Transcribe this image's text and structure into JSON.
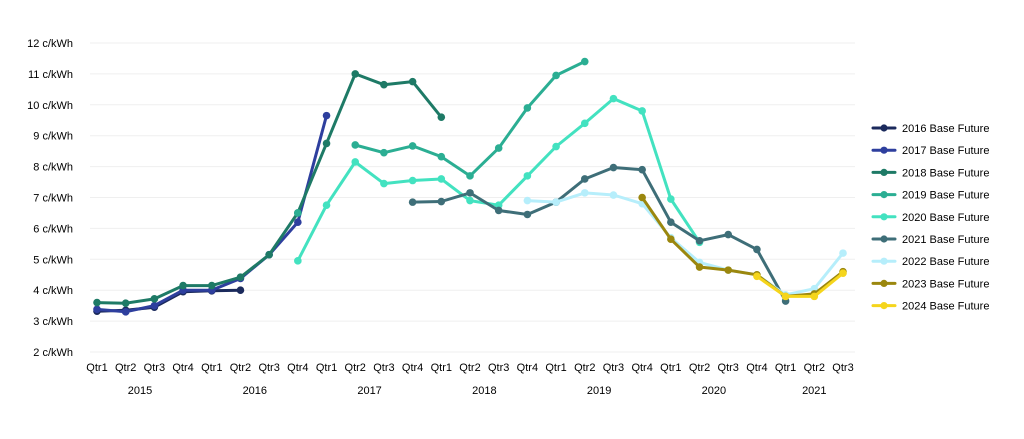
{
  "chart_data": {
    "type": "line",
    "y_unit_label": "c/kWh",
    "ylim": [
      2,
      12
    ],
    "yticks": [
      {
        "value": 12,
        "label": "12 c/kWh"
      },
      {
        "value": 11,
        "label": "11 c/kWh"
      },
      {
        "value": 10,
        "label": "10 c/kWh"
      },
      {
        "value": 9,
        "label": "9 c/kWh"
      },
      {
        "value": 8,
        "label": "8 c/kWh"
      },
      {
        "value": 7,
        "label": "7 c/kWh"
      },
      {
        "value": 6,
        "label": "6 c/kWh"
      },
      {
        "value": 5,
        "label": "5 c/kWh"
      },
      {
        "value": 4,
        "label": "4 c/kWh"
      },
      {
        "value": 3,
        "label": "3 c/kWh"
      },
      {
        "value": 2,
        "label": "2 c/kWh"
      }
    ],
    "categories": [
      "Qtr1",
      "Qtr2",
      "Qtr3",
      "Qtr4",
      "Qtr1",
      "Qtr2",
      "Qtr3",
      "Qtr4",
      "Qtr1",
      "Qtr2",
      "Qtr3",
      "Qtr4",
      "Qtr1",
      "Qtr2",
      "Qtr3",
      "Qtr4",
      "Qtr1",
      "Qtr2",
      "Qtr3",
      "Qtr4",
      "Qtr1",
      "Qtr2",
      "Qtr3",
      "Qtr4",
      "Qtr1",
      "Qtr2",
      "Qtr3"
    ],
    "year_groups": [
      {
        "label": "2015",
        "start": 0,
        "end": 3
      },
      {
        "label": "2016",
        "start": 4,
        "end": 7
      },
      {
        "label": "2017",
        "start": 8,
        "end": 11
      },
      {
        "label": "2018",
        "start": 12,
        "end": 15
      },
      {
        "label": "2019",
        "start": 16,
        "end": 19
      },
      {
        "label": "2020",
        "start": 20,
        "end": 23
      },
      {
        "label": "2021",
        "start": 24,
        "end": 26
      }
    ],
    "grid": true,
    "legend_position": "right",
    "series": [
      {
        "name": "2016 Base Future",
        "color": "#1b2a5c",
        "values": [
          3.32,
          3.35,
          3.45,
          3.95,
          3.98,
          4.0,
          null,
          null,
          null,
          null,
          null,
          null,
          null,
          null,
          null,
          null,
          null,
          null,
          null,
          null,
          null,
          null,
          null,
          null,
          null,
          null,
          null
        ]
      },
      {
        "name": "2017 Base Future",
        "color": "#2e3f9e",
        "values": [
          3.38,
          3.3,
          3.5,
          4.0,
          4.0,
          4.38,
          5.15,
          6.2,
          9.65,
          null,
          null,
          null,
          null,
          null,
          null,
          null,
          null,
          null,
          null,
          null,
          null,
          null,
          null,
          null,
          null,
          null,
          null
        ]
      },
      {
        "name": "2018 Base Future",
        "color": "#1e7a66",
        "values": [
          3.6,
          3.58,
          3.72,
          4.15,
          4.15,
          4.42,
          5.15,
          6.5,
          8.75,
          11.0,
          10.65,
          10.75,
          9.6,
          null,
          null,
          null,
          null,
          null,
          null,
          null,
          null,
          null,
          null,
          null,
          null,
          null,
          null
        ]
      },
      {
        "name": "2019 Base Future",
        "color": "#2bae93",
        "values": [
          null,
          null,
          null,
          null,
          null,
          null,
          null,
          6.5,
          null,
          8.7,
          8.45,
          8.67,
          8.32,
          7.7,
          8.6,
          9.9,
          10.95,
          11.4,
          null,
          null,
          null,
          null,
          null,
          null,
          null,
          null,
          null
        ]
      },
      {
        "name": "2020 Base Future",
        "color": "#43e2c0",
        "values": [
          null,
          null,
          null,
          null,
          null,
          null,
          null,
          4.95,
          6.75,
          8.15,
          7.45,
          7.55,
          7.6,
          6.9,
          6.75,
          7.7,
          8.65,
          9.4,
          10.2,
          9.8,
          6.95,
          5.55,
          null,
          null,
          null,
          null,
          null
        ]
      },
      {
        "name": "2021 Base Future",
        "color": "#3e6e78",
        "values": [
          null,
          null,
          null,
          null,
          null,
          null,
          null,
          null,
          null,
          null,
          null,
          6.85,
          6.87,
          7.15,
          6.58,
          6.45,
          6.85,
          7.6,
          7.97,
          7.9,
          6.2,
          5.6,
          5.8,
          5.32,
          3.65,
          null,
          null
        ]
      },
      {
        "name": "2022 Base Future",
        "color": "#b6eefb",
        "values": [
          null,
          null,
          null,
          null,
          null,
          null,
          null,
          null,
          null,
          null,
          null,
          null,
          null,
          null,
          null,
          6.9,
          6.85,
          7.15,
          7.08,
          6.8,
          5.7,
          4.9,
          4.65,
          4.5,
          3.85,
          4.05,
          5.2
        ]
      },
      {
        "name": "2023 Base Future",
        "color": "#9b870e",
        "values": [
          null,
          null,
          null,
          null,
          null,
          null,
          null,
          null,
          null,
          null,
          null,
          null,
          null,
          null,
          null,
          null,
          null,
          null,
          null,
          7.0,
          5.65,
          4.75,
          4.65,
          4.5,
          3.8,
          3.88,
          4.6
        ]
      },
      {
        "name": "2024 Base Future",
        "color": "#f5d51c",
        "values": [
          null,
          null,
          null,
          null,
          null,
          null,
          null,
          null,
          null,
          null,
          null,
          null,
          null,
          null,
          null,
          null,
          null,
          null,
          null,
          null,
          null,
          null,
          null,
          4.45,
          3.8,
          3.8,
          4.55
        ]
      }
    ]
  }
}
